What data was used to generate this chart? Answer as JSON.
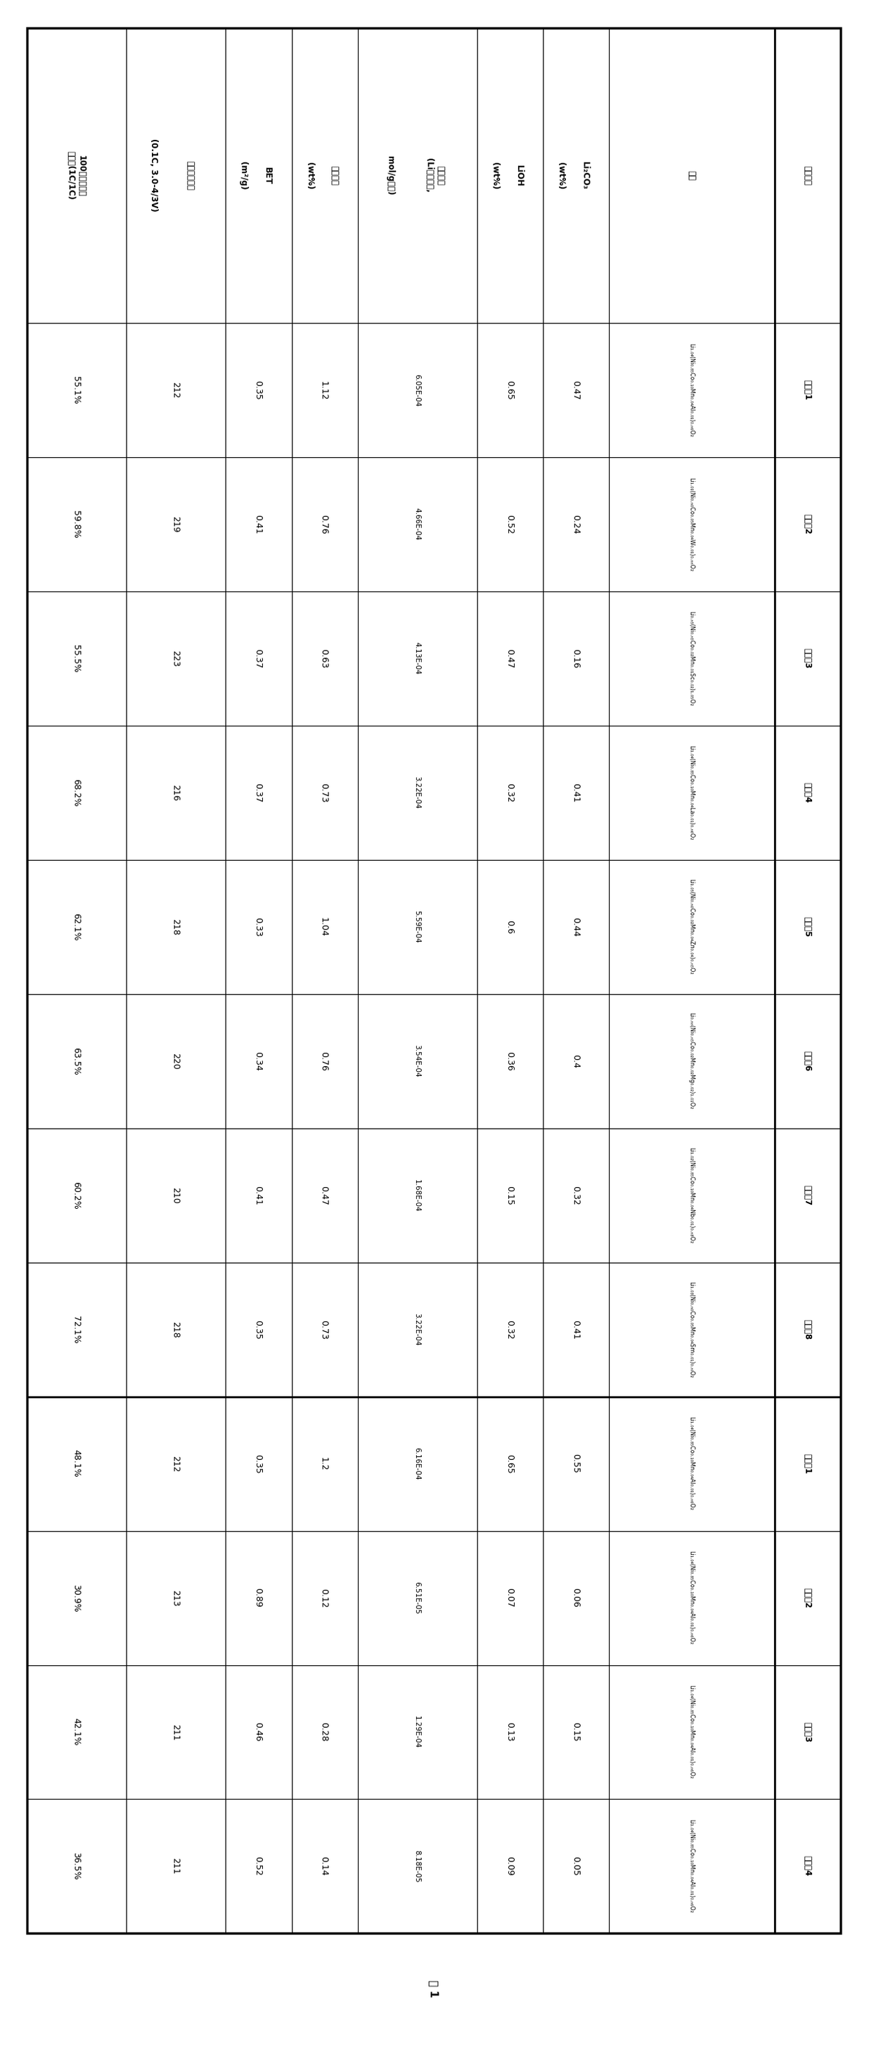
{
  "title": "表 1",
  "col_headers": [
    [
      "样品编号",
      ""
    ],
    [
      "正极",
      ""
    ],
    [
      "Li₂CO₃",
      "(wt%)"
    ],
    [
      "LiOH",
      "(wt%)"
    ],
    [
      "残余碱量",
      "(Li的摩尔数,\nmol/g正极)"
    ],
    [
      "总残碱量",
      "(wt%)"
    ],
    [
      "BET",
      "(m²/g)"
    ],
    [
      "首次放电容量",
      "(0.1C, 3.0-4/3V)"
    ],
    [
      "100次循环容量",
      "保持率(1C/1C)"
    ]
  ],
  "sample_ids": [
    "实施例1",
    "实施例2",
    "实施例3",
    "实施例4",
    "实施例5",
    "实施例6",
    "实施例7",
    "实施例8",
    "对比例1",
    "对比例2",
    "对比例3",
    "对比例4"
  ],
  "cathode_display": [
    "Li₁.₀₄(Ni₀.₈₅Co₀.₁₀Mn₀.₀₄Al₀.₀₁)₀.ₙ₆O₂",
    "Li₁.₀₁(Ni₀.ₙ₀Co₀.₀₅Mn₀.₀₄W₀.₀₁)₀.ₙₙO₂",
    "Li₀.ₙ₅(Ni₀.ₙ₅Co₀.₀₂Mn₀.₀₁Sc₀.₀₂)₁.₀₅O₂",
    "Li₁.₀₄(Ni₀.₈₅Co₀.₁₀Mn₀.₀₄La₀.₀₁)₀.ₙ₆O₂",
    "Li₁.₀₅(Ni₀.ₙ₀Co₀.₀₂Mn₀.₀₄Zn₀.₀₄)₀.ₙ₅O₂",
    "Li₀.ₙₙ(Ni₀.ₙ₅Co₀.₀₂Mn₀.₀₂Mg₀.₀₂)₁.₀₁O₂",
    "Li₁.₀₂(Ni₀.₈₅Co₀.₁₀Mn₀.₀₄Nb₀.₀₁)₀.ₙ₈O₂",
    "Li₁.₀₃(Ni₀.ₙ₀Co₀.₀₅Mn₀.₀₄Sm₀.₀₁)₀.ₙₗO₂",
    "Li₁.₀₄(Ni₀.₈₅Co₀.₁₀Mn₀.₀₄Al₀.₀₁)₀.ₙ₆O₂",
    "Li₁.₀₄(Ni₀.₈₅Co₀.₁₀Mn₀.₀₄Al₀.₀₁)₀.ₙ₆O₂",
    "Li₁.₀₄(Ni₀.₈₅Co₀.₁₀Mn₀.₀₄Al₀.₀₁)₀.ₙ₆O₂",
    "Li₁.₀₄(Ni₀.₈₅Co₀.₁₀Mn₀.₀₄Al₀.₀₁)₀.ₙ₆O₂"
  ],
  "li2co3": [
    "0.47",
    "0.24",
    "0.16",
    "0.41",
    "0.44",
    "0.4",
    "0.32",
    "0.41",
    "0.55",
    "0.06",
    "0.15",
    "0.05"
  ],
  "lioh": [
    "0.65",
    "0.52",
    "0.47",
    "0.32",
    "0.6",
    "0.36",
    "0.15",
    "0.32",
    "0.65",
    "0.07",
    "0.13",
    "0.09"
  ],
  "residual_alkali_mol": [
    "6.05E-04",
    "4.66E-04",
    "4.13E-04",
    "3.22E-04",
    "5.59E-04",
    "3.54E-04",
    "1.68E-04",
    "3.22E-04",
    "6.16E-04",
    "6.51E-05",
    "1.29E-04",
    "8.18E-05"
  ],
  "total_residual_alkali": [
    "1.12",
    "0.76",
    "0.63",
    "0.73",
    "1.04",
    "0.76",
    "0.47",
    "0.73",
    "1.2",
    "0.12",
    "0.28",
    "0.14"
  ],
  "bet": [
    "0.35",
    "0.41",
    "0.37",
    "0.37",
    "0.33",
    "0.34",
    "0.41",
    "0.35",
    "0.35",
    "0.89",
    "0.46",
    "0.52"
  ],
  "first_discharge": [
    "212",
    "219",
    "223",
    "216",
    "218",
    "220",
    "210",
    "218",
    "212",
    "213",
    "211",
    "211"
  ],
  "cycle_retention": [
    "55.1%",
    "59.8%",
    "55.5%",
    "68.2%",
    "62.1%",
    "63.5%",
    "60.2%",
    "72.1%",
    "48.1%",
    "30.9%",
    "42.1%",
    "36.5%"
  ]
}
